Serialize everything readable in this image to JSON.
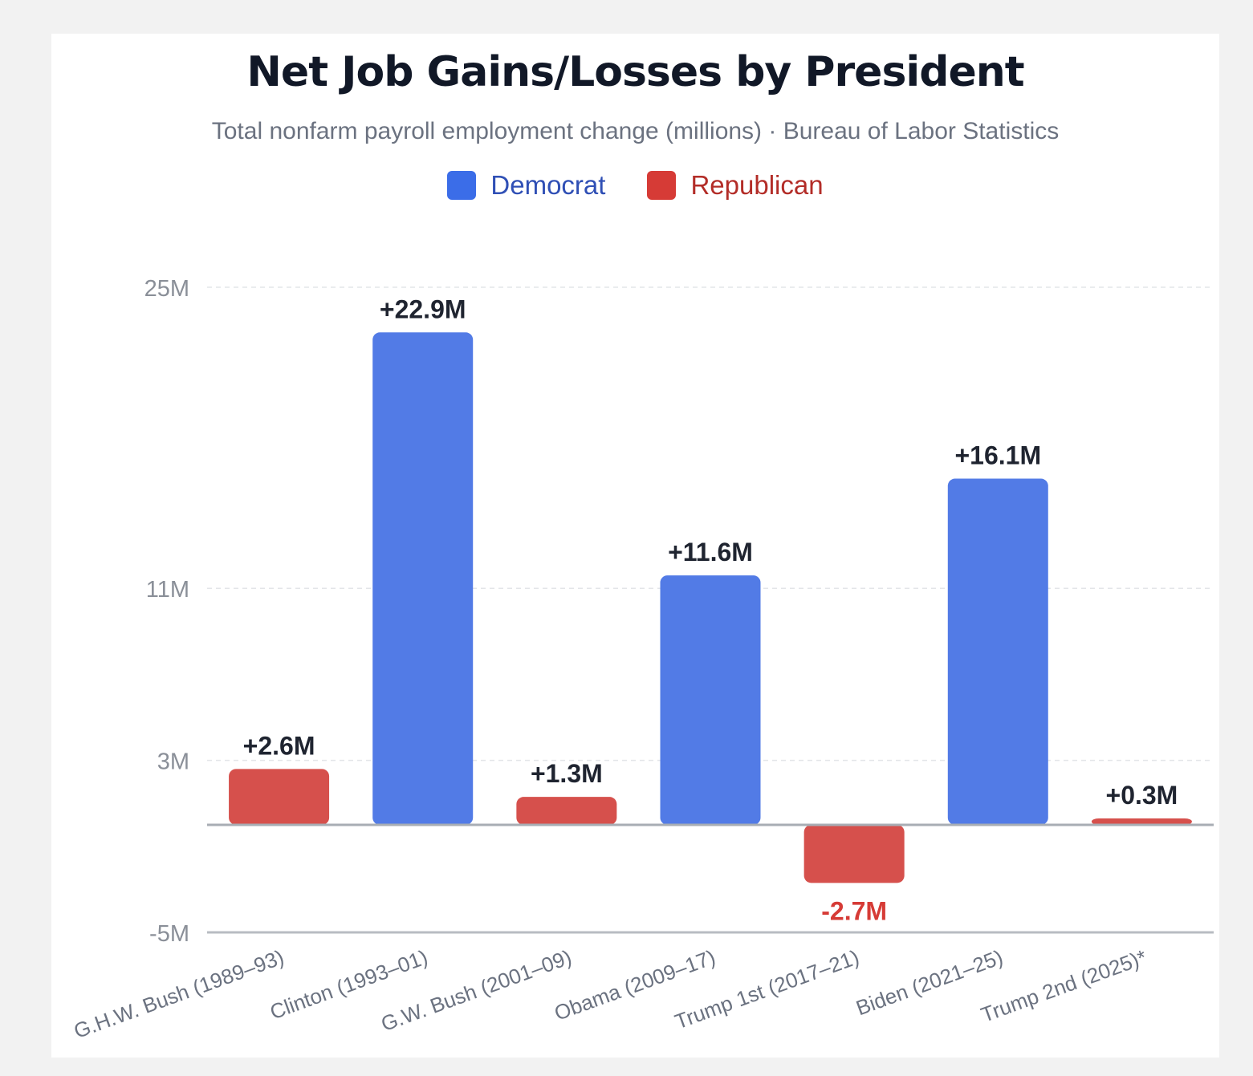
{
  "chart_data": {
    "type": "bar",
    "title": "Net Job Gains/Losses by President",
    "subtitle": "Total nonfarm payroll employment change (millions) · Bureau of Labor Statistics",
    "xlabel": "",
    "ylabel": "",
    "categories": [
      "G.H.W. Bush (1989–93)",
      "Clinton (1993–01)",
      "G.W. Bush (2001–09)",
      "Obama (2009–17)",
      "Trump 1st (2017–21)",
      "Biden (2021–25)",
      "Trump 2nd (2025)*"
    ],
    "values": [
      2.6,
      22.9,
      1.3,
      11.6,
      -2.7,
      16.1,
      0.3
    ],
    "parties": [
      "Republican",
      "Democrat",
      "Republican",
      "Democrat",
      "Republican",
      "Democrat",
      "Republican"
    ],
    "data_labels": [
      "+2.6M",
      "+22.9M",
      "+1.3M",
      "+11.6M",
      "-2.7M",
      "+16.1M",
      "+0.3M"
    ],
    "ylim": [
      -5,
      25
    ],
    "yticks": [
      -5,
      3,
      11,
      25
    ],
    "ytick_labels": [
      "-5M",
      "3M",
      "11M",
      "25M"
    ],
    "grid": true,
    "legend": {
      "placement": "top-center",
      "entries": [
        {
          "name": "Democrat",
          "color": "#3b6de8"
        },
        {
          "name": "Republican",
          "color": "#d63b36"
        }
      ]
    },
    "colors": {
      "Democrat": "#527be6",
      "Republican": "#d6504c",
      "negative_label": "#d63b36"
    }
  }
}
